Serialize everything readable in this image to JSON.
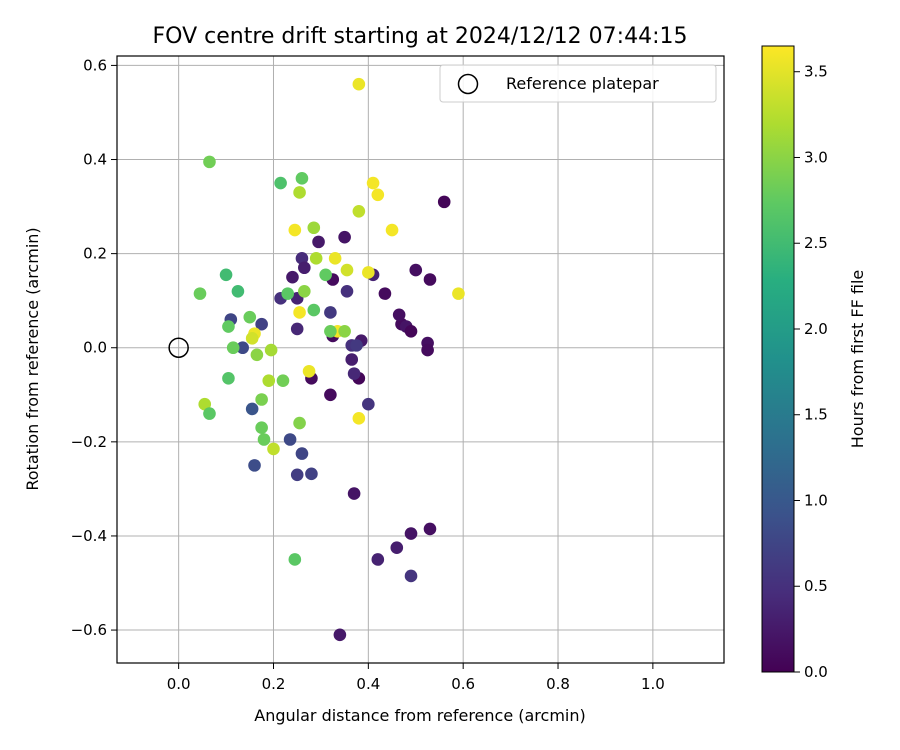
{
  "chart_data": {
    "type": "scatter",
    "title": "FOV centre drift starting at 2024/12/12 07:44:15",
    "xlabel": "Angular distance from reference (arcmin)",
    "ylabel": "Rotation from reference (arcmin)",
    "xlim": [
      -0.13,
      1.15
    ],
    "ylim": [
      -0.67,
      0.62
    ],
    "xticks": [
      0.0,
      0.2,
      0.4,
      0.6,
      0.8,
      1.0
    ],
    "xtick_labels": [
      "0.0",
      "0.2",
      "0.4",
      "0.6",
      "0.8",
      "1.0"
    ],
    "yticks": [
      -0.6,
      -0.4,
      -0.2,
      0.0,
      0.2,
      0.4,
      0.6
    ],
    "ytick_labels": [
      "−0.6",
      "−0.4",
      "−0.2",
      "0.0",
      "0.2",
      "0.4",
      "0.6"
    ],
    "grid": true,
    "legend": {
      "placement": "top-right",
      "entries": [
        "Reference platepar"
      ]
    },
    "reference_point": {
      "x": 0.0,
      "y": 0.0
    },
    "colorbar": {
      "label": "Hours from first FF file",
      "range": [
        0.0,
        3.65
      ],
      "ticks": [
        0.0,
        0.5,
        1.0,
        1.5,
        2.0,
        2.5,
        3.0,
        3.5
      ],
      "tick_labels": [
        "0.0",
        "0.5",
        "1.0",
        "1.5",
        "2.0",
        "2.5",
        "3.0",
        "3.5"
      ],
      "colormap": "viridis"
    },
    "points": [
      {
        "x": 0.34,
        "y": -0.61,
        "c": 0.25
      },
      {
        "x": 0.42,
        "y": -0.45,
        "c": 0.35
      },
      {
        "x": 0.46,
        "y": -0.425,
        "c": 0.3
      },
      {
        "x": 0.49,
        "y": -0.395,
        "c": 0.2
      },
      {
        "x": 0.53,
        "y": -0.385,
        "c": 0.15
      },
      {
        "x": 0.49,
        "y": -0.485,
        "c": 0.55
      },
      {
        "x": 0.37,
        "y": -0.31,
        "c": 0.2
      },
      {
        "x": 0.25,
        "y": -0.27,
        "c": 0.65
      },
      {
        "x": 0.28,
        "y": -0.268,
        "c": 0.7
      },
      {
        "x": 0.16,
        "y": -0.25,
        "c": 0.85
      },
      {
        "x": 0.26,
        "y": -0.225,
        "c": 0.75
      },
      {
        "x": 0.235,
        "y": -0.195,
        "c": 0.8
      },
      {
        "x": 0.155,
        "y": -0.13,
        "c": 0.95
      },
      {
        "x": 0.32,
        "y": -0.1,
        "c": 0.1
      },
      {
        "x": 0.4,
        "y": -0.12,
        "c": 0.55
      },
      {
        "x": 0.38,
        "y": -0.065,
        "c": 0.05
      },
      {
        "x": 0.37,
        "y": -0.055,
        "c": 0.4
      },
      {
        "x": 0.365,
        "y": -0.025,
        "c": 0.3
      },
      {
        "x": 0.28,
        "y": -0.065,
        "c": 0.1
      },
      {
        "x": 0.365,
        "y": 0.005,
        "c": 0.5
      },
      {
        "x": 0.385,
        "y": 0.015,
        "c": 0.25
      },
      {
        "x": 0.375,
        "y": 0.005,
        "c": 0.6
      },
      {
        "x": 0.325,
        "y": 0.025,
        "c": 0.1
      },
      {
        "x": 0.32,
        "y": 0.075,
        "c": 0.6
      },
      {
        "x": 0.25,
        "y": 0.04,
        "c": 0.4
      },
      {
        "x": 0.47,
        "y": 0.05,
        "c": 0.1
      },
      {
        "x": 0.48,
        "y": 0.045,
        "c": 0.2
      },
      {
        "x": 0.49,
        "y": 0.035,
        "c": 0.05
      },
      {
        "x": 0.525,
        "y": 0.01,
        "c": 0.15
      },
      {
        "x": 0.525,
        "y": -0.005,
        "c": 0.1
      },
      {
        "x": 0.465,
        "y": 0.07,
        "c": 0.15
      },
      {
        "x": 0.435,
        "y": 0.115,
        "c": 0.1
      },
      {
        "x": 0.53,
        "y": 0.145,
        "c": 0.1
      },
      {
        "x": 0.5,
        "y": 0.165,
        "c": 0.15
      },
      {
        "x": 0.41,
        "y": 0.155,
        "c": 0.35
      },
      {
        "x": 0.355,
        "y": 0.12,
        "c": 0.5
      },
      {
        "x": 0.325,
        "y": 0.145,
        "c": 0.1
      },
      {
        "x": 0.35,
        "y": 0.235,
        "c": 0.2
      },
      {
        "x": 0.56,
        "y": 0.31,
        "c": 0.05
      },
      {
        "x": 0.295,
        "y": 0.225,
        "c": 0.25
      },
      {
        "x": 0.26,
        "y": 0.19,
        "c": 0.45
      },
      {
        "x": 0.265,
        "y": 0.17,
        "c": 0.3
      },
      {
        "x": 0.24,
        "y": 0.15,
        "c": 0.25
      },
      {
        "x": 0.215,
        "y": 0.105,
        "c": 0.5
      },
      {
        "x": 0.25,
        "y": 0.105,
        "c": 0.35
      },
      {
        "x": 0.175,
        "y": 0.05,
        "c": 0.7
      },
      {
        "x": 0.11,
        "y": 0.06,
        "c": 0.75
      },
      {
        "x": 0.135,
        "y": 0.0,
        "c": 0.8
      },
      {
        "x": 0.38,
        "y": 0.56,
        "c": 3.55
      },
      {
        "x": 0.41,
        "y": 0.35,
        "c": 3.6
      },
      {
        "x": 0.42,
        "y": 0.325,
        "c": 3.6
      },
      {
        "x": 0.38,
        "y": 0.29,
        "c": 3.3
      },
      {
        "x": 0.45,
        "y": 0.25,
        "c": 3.6
      },
      {
        "x": 0.245,
        "y": 0.25,
        "c": 3.6
      },
      {
        "x": 0.285,
        "y": 0.255,
        "c": 3.1
      },
      {
        "x": 0.33,
        "y": 0.19,
        "c": 3.55
      },
      {
        "x": 0.29,
        "y": 0.19,
        "c": 3.2
      },
      {
        "x": 0.4,
        "y": 0.16,
        "c": 3.55
      },
      {
        "x": 0.355,
        "y": 0.165,
        "c": 3.4
      },
      {
        "x": 0.59,
        "y": 0.115,
        "c": 3.55
      },
      {
        "x": 0.255,
        "y": 0.33,
        "c": 3.2
      },
      {
        "x": 0.255,
        "y": 0.075,
        "c": 3.6
      },
      {
        "x": 0.335,
        "y": 0.035,
        "c": 3.6
      },
      {
        "x": 0.275,
        "y": -0.05,
        "c": 3.55
      },
      {
        "x": 0.38,
        "y": -0.15,
        "c": 3.6
      },
      {
        "x": 0.2,
        "y": -0.215,
        "c": 3.3
      },
      {
        "x": 0.16,
        "y": 0.03,
        "c": 3.55
      },
      {
        "x": 0.155,
        "y": 0.02,
        "c": 3.4
      },
      {
        "x": 0.19,
        "y": -0.07,
        "c": 3.2
      },
      {
        "x": 0.195,
        "y": -0.005,
        "c": 3.15
      },
      {
        "x": 0.055,
        "y": -0.12,
        "c": 3.2
      },
      {
        "x": 0.065,
        "y": 0.395,
        "c": 2.85
      },
      {
        "x": 0.26,
        "y": 0.36,
        "c": 2.75
      },
      {
        "x": 0.215,
        "y": 0.35,
        "c": 2.6
      },
      {
        "x": 0.045,
        "y": 0.115,
        "c": 2.8
      },
      {
        "x": 0.1,
        "y": 0.155,
        "c": 2.5
      },
      {
        "x": 0.125,
        "y": 0.12,
        "c": 2.5
      },
      {
        "x": 0.23,
        "y": 0.115,
        "c": 2.7
      },
      {
        "x": 0.265,
        "y": 0.12,
        "c": 3.0
      },
      {
        "x": 0.31,
        "y": 0.155,
        "c": 2.75
      },
      {
        "x": 0.285,
        "y": 0.08,
        "c": 2.7
      },
      {
        "x": 0.32,
        "y": 0.035,
        "c": 2.8
      },
      {
        "x": 0.35,
        "y": 0.035,
        "c": 3.0
      },
      {
        "x": 0.15,
        "y": 0.065,
        "c": 2.8
      },
      {
        "x": 0.105,
        "y": 0.045,
        "c": 2.75
      },
      {
        "x": 0.115,
        "y": 0.0,
        "c": 2.8
      },
      {
        "x": 0.165,
        "y": -0.015,
        "c": 3.0
      },
      {
        "x": 0.105,
        "y": -0.065,
        "c": 2.65
      },
      {
        "x": 0.22,
        "y": -0.07,
        "c": 2.85
      },
      {
        "x": 0.175,
        "y": -0.11,
        "c": 2.9
      },
      {
        "x": 0.065,
        "y": -0.14,
        "c": 2.7
      },
      {
        "x": 0.255,
        "y": -0.16,
        "c": 2.95
      },
      {
        "x": 0.175,
        "y": -0.17,
        "c": 2.8
      },
      {
        "x": 0.18,
        "y": -0.195,
        "c": 2.8
      },
      {
        "x": 0.245,
        "y": -0.45,
        "c": 2.7
      }
    ]
  }
}
